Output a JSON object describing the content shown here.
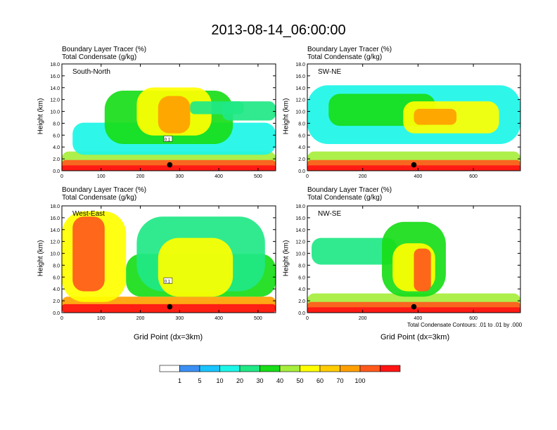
{
  "title": "2013-08-14_06:00:00",
  "variable_labels": [
    "Boundary Layer Tracer   (%)",
    "Total Condensate   (g/kg)"
  ],
  "contour_note": "Total Condensate Contours: .01 to .01 by .000",
  "x_axis_title": "Grid Point (dx=3km)",
  "y_axis_title": "Height (km)",
  "colorbar": {
    "labels": [
      "1",
      "5",
      "10",
      "20",
      "30",
      "40",
      "50",
      "60",
      "70",
      "100"
    ],
    "colors": [
      "#ffffff",
      "#3b8ff3",
      "#19c4ff",
      "#1cf6e8",
      "#20e886",
      "#18dd18",
      "#a6ee3c",
      "#ffff00",
      "#ffcc00",
      "#ffa000",
      "#ff5a1c",
      "#ff1414"
    ]
  },
  "chart_data": [
    {
      "type": "heatmap",
      "panel": "South-North",
      "xlabel": "",
      "ylabel": "Height (km)",
      "xlim": [
        0,
        545
      ],
      "ylim": [
        0,
        18
      ],
      "xticks": [
        0,
        100,
        200,
        300,
        400,
        500
      ],
      "yticks": [
        0.0,
        2.0,
        4.0,
        6.0,
        8.0,
        10.0,
        12.0,
        14.0,
        16.0,
        18.0
      ],
      "ytick_labels": [
        "0.0",
        "2.0",
        "4.0",
        "6.0",
        "8.0",
        "10.0",
        "12.0",
        "14.0",
        "16.0",
        "18.0"
      ],
      "marker": {
        "x": 275,
        "y": 1.0
      },
      "contour_label": "0.1"
    },
    {
      "type": "heatmap",
      "panel": "SW-NE",
      "xlabel": "",
      "ylabel": "Height (km)",
      "xlim": [
        0,
        770
      ],
      "ylim": [
        0,
        18
      ],
      "xticks": [
        0,
        200,
        400,
        600
      ],
      "yticks": [
        0.0,
        2.0,
        4.0,
        6.0,
        8.0,
        10.0,
        12.0,
        14.0,
        16.0,
        18.0
      ],
      "ytick_labels": [
        "0.0",
        "2.0",
        "4.0",
        "6.0",
        "8.0",
        "10.0",
        "12.0",
        "14.0",
        "16.0",
        "18.0"
      ],
      "marker": {
        "x": 385,
        "y": 1.0
      },
      "contour_label": ""
    },
    {
      "type": "heatmap",
      "panel": "West-East",
      "xlabel": "Grid Point (dx=3km)",
      "ylabel": "Height (km)",
      "xlim": [
        0,
        545
      ],
      "ylim": [
        0,
        18
      ],
      "xticks": [
        0,
        100,
        200,
        300,
        400,
        500
      ],
      "yticks": [
        0.0,
        2.0,
        4.0,
        6.0,
        8.0,
        10.0,
        12.0,
        14.0,
        16.0,
        18.0
      ],
      "ytick_labels": [
        "0.0",
        "2.0",
        "4.0",
        "6.0",
        "8.0",
        "10.0",
        "12.0",
        "14.0",
        "16.0",
        "18.0"
      ],
      "marker": {
        "x": 275,
        "y": 1.0
      },
      "contour_label": "0.1"
    },
    {
      "type": "heatmap",
      "panel": "NW-SE",
      "xlabel": "Grid Point (dx=3km)",
      "ylabel": "Height (km)",
      "xlim": [
        0,
        770
      ],
      "ylim": [
        0,
        18
      ],
      "xticks": [
        0,
        200,
        400,
        600
      ],
      "yticks": [
        0.0,
        2.0,
        4.0,
        6.0,
        8.0,
        10.0,
        12.0,
        14.0,
        16.0,
        18.0
      ],
      "ytick_labels": [
        "0.0",
        "2.0",
        "4.0",
        "6.0",
        "8.0",
        "10.0",
        "12.0",
        "14.0",
        "16.0",
        "18.0"
      ],
      "marker": {
        "x": 385,
        "y": 1.0
      },
      "contour_label": ""
    }
  ]
}
